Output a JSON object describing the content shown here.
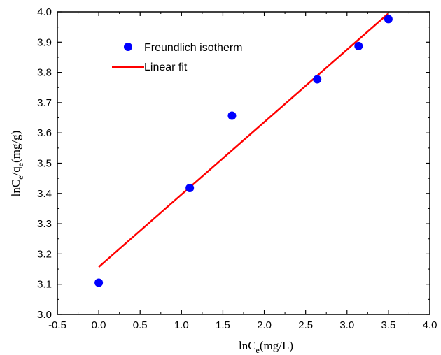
{
  "chart_data": {
    "type": "scatter",
    "xlabel": "lnC_e(mg/L)",
    "xlabel_main": "lnC",
    "xlabel_sub": "e",
    "xlabel_rest": "(mg/L)",
    "ylabel": "lnC_e/q_e(mg/g)",
    "ylabel_p1": "lnC",
    "ylabel_s1": "e",
    "ylabel_p2": "/q",
    "ylabel_s2": "e",
    "ylabel_p3": "(mg/g)",
    "xlim": [
      -0.5,
      4.0
    ],
    "ylim": [
      3.0,
      4.0
    ],
    "xticks": [
      "-0.5",
      "0.0",
      "0.5",
      "1.0",
      "1.5",
      "2.0",
      "2.5",
      "3.0",
      "3.5",
      "4.0"
    ],
    "yticks": [
      "3.0",
      "3.1",
      "3.2",
      "3.3",
      "3.4",
      "3.5",
      "3.6",
      "3.7",
      "3.8",
      "3.9",
      "4.0"
    ],
    "grid": false,
    "legend_position": "top-left",
    "series": [
      {
        "name": "Freundlich isotherm",
        "kind": "scatter",
        "color": "#0000ff",
        "x": [
          0.0,
          1.1,
          1.61,
          2.64,
          3.14,
          3.5
        ],
        "y": [
          3.105,
          3.418,
          3.657,
          3.777,
          3.887,
          3.976
        ]
      },
      {
        "name": "Linear fit",
        "kind": "line",
        "color": "#ff0000",
        "x": [
          0.0,
          3.5
        ],
        "y": [
          3.157,
          3.995
        ]
      }
    ]
  }
}
